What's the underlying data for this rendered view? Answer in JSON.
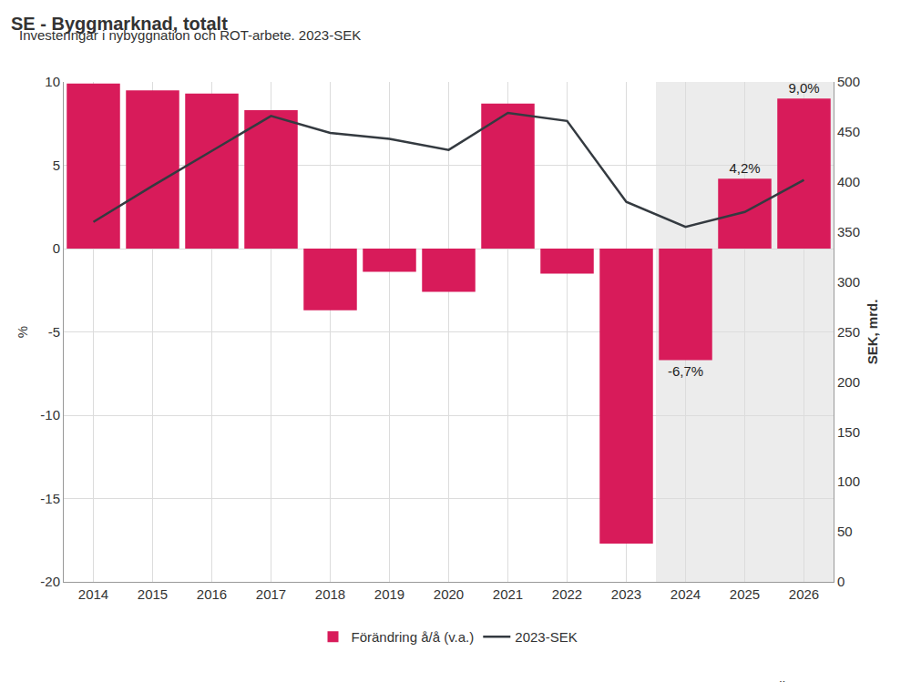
{
  "chart_data": {
    "type": "bar",
    "title": "SE - Byggmarknad, totalt",
    "subtitle": "Investeringar i nybyggnation och ROT-arbete. 2023-SEK",
    "source": "Källa: Prognoscentret",
    "categories": [
      "2014",
      "2015",
      "2016",
      "2017",
      "2018",
      "2019",
      "2020",
      "2021",
      "2022",
      "2023",
      "2024",
      "2025",
      "2026"
    ],
    "series": [
      {
        "name": "Förändring å/å (v.a.)",
        "type": "bar",
        "color": "#d81b5a",
        "values": [
          9.9,
          9.5,
          9.3,
          8.3,
          -3.7,
          -1.4,
          -2.6,
          8.7,
          -1.5,
          -17.7,
          -6.7,
          4.2,
          9.0
        ],
        "value_labels": [
          null,
          null,
          null,
          null,
          null,
          null,
          null,
          null,
          null,
          null,
          "-6,7%",
          "4,2%",
          "9,0%"
        ]
      },
      {
        "name": "2023-SEK",
        "type": "line",
        "axis": "y2",
        "color": "#343a40",
        "values": [
          360,
          396,
          431,
          466,
          449,
          443,
          432,
          469,
          461,
          380,
          355,
          370,
          402
        ]
      }
    ],
    "ylabel": "%",
    "y2label": "SEK, mrd.",
    "ylim": [
      -20,
      10
    ],
    "yticks": [
      -20,
      -15,
      -10,
      -5,
      0,
      5,
      10
    ],
    "y2lim": [
      0,
      500
    ],
    "y2ticks": [
      0,
      50,
      100,
      150,
      200,
      250,
      300,
      350,
      400,
      450,
      500
    ],
    "grid": true,
    "legend": "bottom",
    "data_labels": true,
    "shaded_categories": [
      "2024",
      "2025",
      "2026"
    ]
  }
}
